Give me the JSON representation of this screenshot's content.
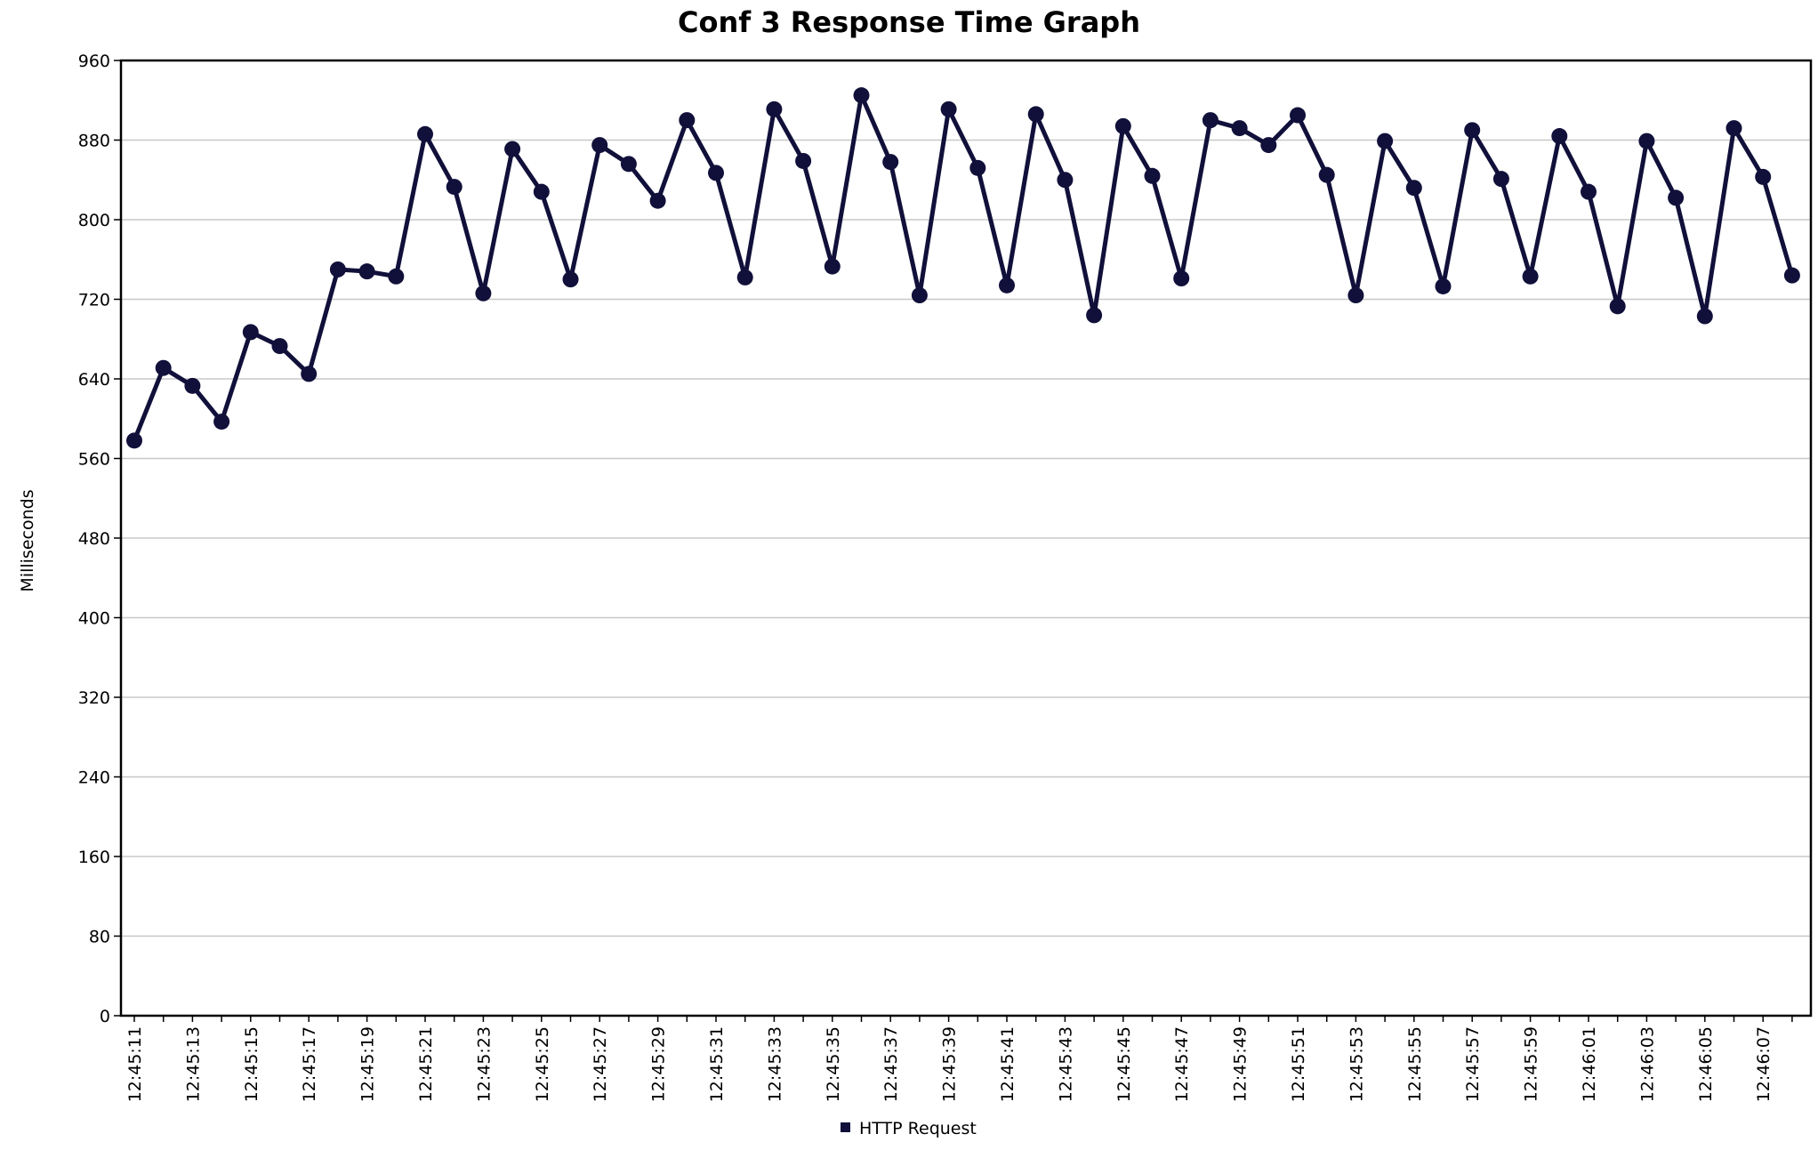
{
  "chart_data": {
    "type": "line",
    "title": "Conf 3 Response Time Graph",
    "xlabel": "",
    "ylabel": "Milliseconds",
    "ylim": [
      0,
      960
    ],
    "yticks": [
      0,
      80,
      160,
      240,
      320,
      400,
      480,
      560,
      640,
      720,
      800,
      880,
      960
    ],
    "grid": true,
    "legend_position": "bottom",
    "x_tick_labels": [
      "12:45:11",
      "12:45:13",
      "12:45:15",
      "12:45:17",
      "12:45:19",
      "12:45:21",
      "12:45:23",
      "12:45:25",
      "12:45:27",
      "12:45:29",
      "12:45:31",
      "12:45:33",
      "12:45:35",
      "12:45:37",
      "12:45:39",
      "12:45:41",
      "12:45:43",
      "12:45:45",
      "12:45:47",
      "12:45:49",
      "12:45:51",
      "12:45:53",
      "12:45:55",
      "12:45:57",
      "12:45:59",
      "12:46:01",
      "12:46:03",
      "12:46:05",
      "12:46:07"
    ],
    "x": [
      "12:45:11",
      "12:45:12",
      "12:45:13",
      "12:45:14",
      "12:45:15",
      "12:45:16",
      "12:45:17",
      "12:45:18",
      "12:45:19",
      "12:45:20",
      "12:45:21",
      "12:45:22",
      "12:45:23",
      "12:45:24",
      "12:45:25",
      "12:45:26",
      "12:45:27",
      "12:45:28",
      "12:45:29",
      "12:45:30",
      "12:45:31",
      "12:45:32",
      "12:45:33",
      "12:45:34",
      "12:45:35",
      "12:45:36",
      "12:45:37",
      "12:45:38",
      "12:45:39",
      "12:45:40",
      "12:45:41",
      "12:45:42",
      "12:45:43",
      "12:45:44",
      "12:45:45",
      "12:45:46",
      "12:45:47",
      "12:45:48",
      "12:45:49",
      "12:45:50",
      "12:45:51",
      "12:45:52",
      "12:45:53",
      "12:45:54",
      "12:45:55",
      "12:45:56",
      "12:45:57",
      "12:45:58",
      "12:45:59",
      "12:46:00",
      "12:46:01",
      "12:46:02",
      "12:46:03",
      "12:46:04",
      "12:46:05",
      "12:46:06",
      "12:46:07",
      "12:46:08"
    ],
    "series": [
      {
        "name": "HTTP Request",
        "color": "#10103a",
        "values": [
          578,
          651,
          633,
          597,
          687,
          673,
          645,
          750,
          748,
          743,
          886,
          833,
          726,
          871,
          828,
          740,
          875,
          856,
          819,
          900,
          847,
          742,
          911,
          859,
          753,
          925,
          858,
          724,
          911,
          852,
          734,
          906,
          840,
          704,
          894,
          844,
          741,
          900,
          892,
          875,
          905,
          845,
          724,
          879,
          832,
          733,
          890,
          841,
          743,
          884,
          828,
          713,
          879,
          822,
          703,
          892,
          843,
          744
        ]
      }
    ]
  }
}
